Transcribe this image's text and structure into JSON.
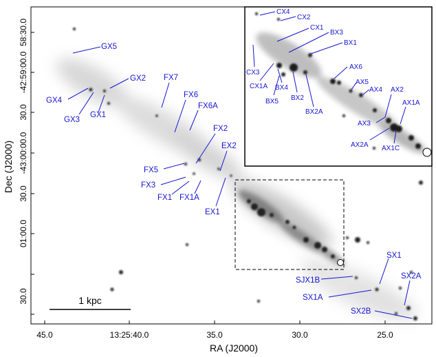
{
  "axes": {
    "x_label": "RA (J2000)",
    "y_label": "Dec (J2000)",
    "x_ticks": [
      "45.0",
      "13:25:40.0",
      "35.0",
      "30.0",
      "25.0"
    ],
    "y_ticks": [
      "58:30.0",
      "-42:59:00.0",
      "30.0",
      "-43:00:00.0",
      "30.0",
      "01:00.0",
      "30.0"
    ]
  },
  "scale_bar": {
    "label": "1 kpc"
  },
  "main_labels": [
    "GX5",
    "GX2",
    "GX4",
    "GX3",
    "GX1",
    "FX7",
    "FX6",
    "FX6A",
    "FX2",
    "EX2",
    "FX5",
    "FX3",
    "FX1",
    "FX1A",
    "EX1",
    "SX1",
    "SJX1B",
    "SX2A",
    "SX1A",
    "SX2B"
  ],
  "inset_labels": [
    "CX4",
    "CX2",
    "CX1",
    "BX3",
    "BX1",
    "CX3",
    "CX1A",
    "BX4",
    "BX5",
    "BX2",
    "BX2A",
    "AX6",
    "AX5",
    "AX4",
    "AX2",
    "AX1A",
    "AX3",
    "AX2A",
    "AX1C"
  ],
  "colors": {
    "label": "#1414d2",
    "frame": "#000000"
  }
}
